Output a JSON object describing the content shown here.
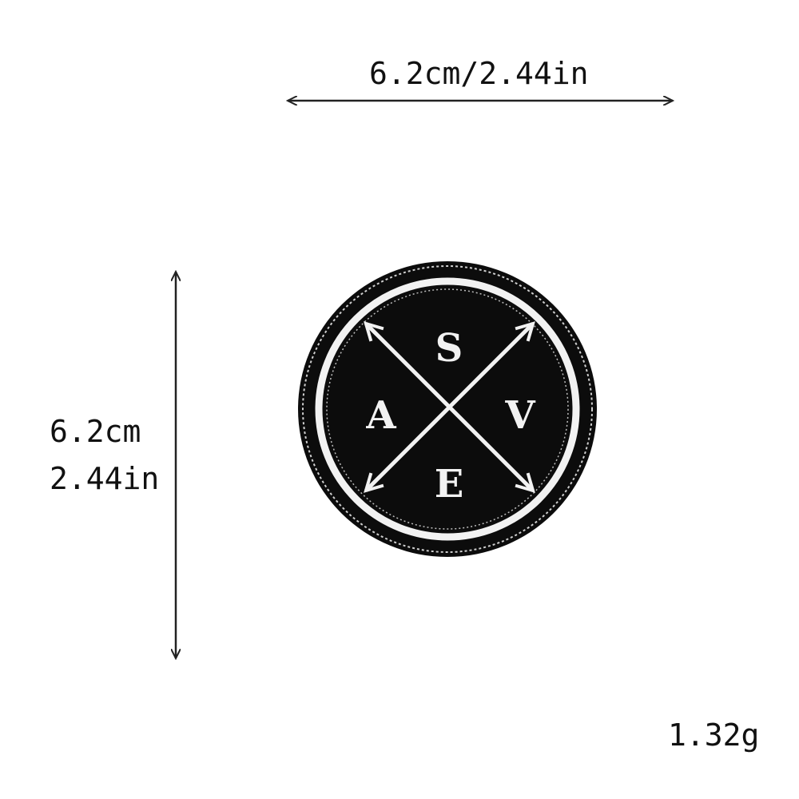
{
  "dimensions": {
    "width_label": "6.2cm/2.44in",
    "height_label_cm": "6.2cm",
    "height_label_in": "2.44in",
    "weight_label": "1.32g"
  },
  "patch": {
    "letters": {
      "top": "S",
      "left": "A",
      "right": "V",
      "bottom": "E"
    },
    "colors": {
      "fabric": "#0c0c0c",
      "embroidery": "#f2f2f2",
      "stitch": "#cfcfcf"
    }
  },
  "arrow_color": "#222222"
}
